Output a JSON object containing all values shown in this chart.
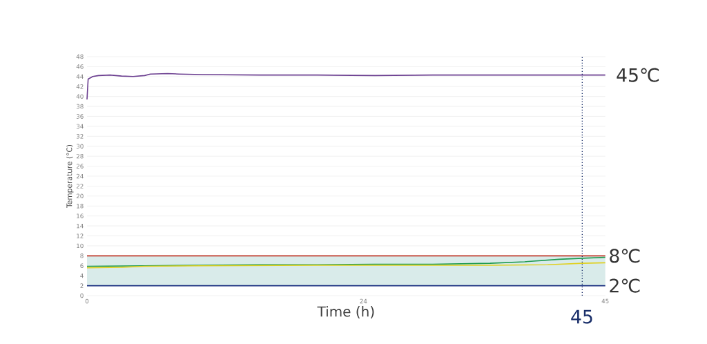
{
  "chart_data": {
    "type": "line",
    "xlabel": "Time (h)",
    "ylabel": "Temperature (°C)",
    "xlim": [
      0,
      45
    ],
    "ylim": [
      0,
      48
    ],
    "xticks": [
      0,
      24,
      45
    ],
    "annotations": [
      "45"
    ],
    "yticks": [
      0,
      2,
      4,
      6,
      8,
      10,
      12,
      14,
      16,
      18,
      20,
      22,
      24,
      26,
      28,
      30,
      32,
      34,
      36,
      38,
      40,
      42,
      44,
      46,
      48
    ],
    "grid": "y",
    "series": [
      {
        "name": "45℃",
        "color": "#6a3d8f",
        "x": [
          0,
          0.1,
          0.5,
          1,
          2,
          3,
          4,
          5,
          5.5,
          7,
          8,
          10,
          15,
          20,
          25,
          30,
          35,
          40,
          43,
          45
        ],
        "values": [
          39.4,
          43.5,
          44.0,
          44.2,
          44.3,
          44.1,
          44.0,
          44.2,
          44.5,
          44.6,
          44.5,
          44.4,
          44.3,
          44.3,
          44.2,
          44.3,
          44.3,
          44.3,
          44.3,
          44.3
        ]
      },
      {
        "color": "#1e9a50",
        "x": [
          0,
          5,
          10,
          15,
          20,
          25,
          30,
          35,
          38,
          41,
          43,
          45
        ],
        "values": [
          5.9,
          6.0,
          6.1,
          6.2,
          6.2,
          6.3,
          6.3,
          6.5,
          6.8,
          7.3,
          7.5,
          7.7
        ]
      },
      {
        "color": "#e0d020",
        "x": [
          0,
          3,
          5,
          10,
          20,
          30,
          35,
          40,
          43,
          45
        ],
        "values": [
          5.6,
          5.7,
          5.9,
          6.0,
          6.1,
          6.1,
          6.1,
          6.2,
          6.5,
          6.6
        ]
      }
    ],
    "ref_lines": [
      {
        "axis": "y",
        "value": 8,
        "label": "8℃",
        "color": "#c0392b"
      },
      {
        "axis": "y",
        "value": 2,
        "label": "2℃",
        "color": "#1a2f80"
      },
      {
        "axis": "x",
        "value": 43,
        "color": "#1a2f6a",
        "line_style": "dotted"
      }
    ],
    "bands": [
      {
        "axis": "y",
        "from": 2,
        "to": 8,
        "color": "#d9ebea"
      }
    ]
  }
}
